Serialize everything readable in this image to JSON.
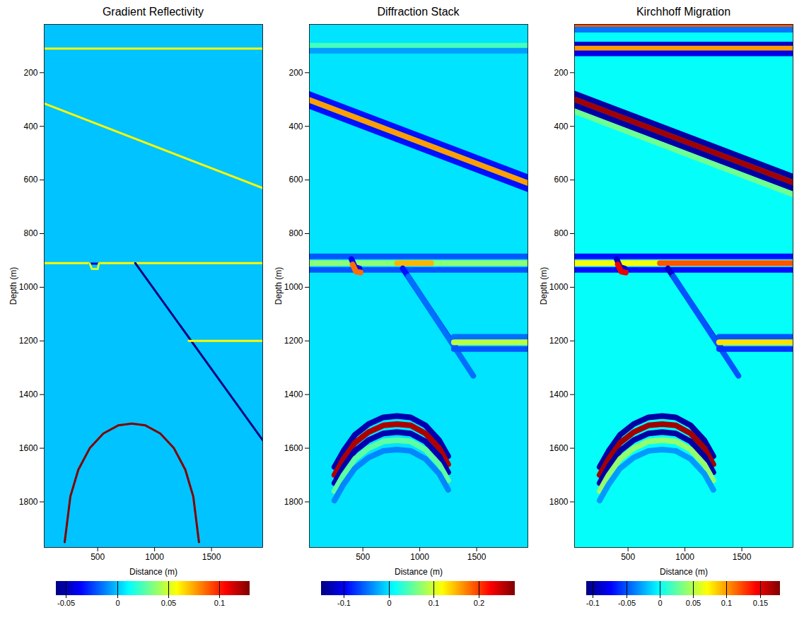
{
  "chart_data": [
    {
      "type": "image",
      "title": "Gradient Reflectivity",
      "xlabel": "Distance (m)",
      "ylabel": "Depth (m)",
      "xlim": [
        30,
        1950
      ],
      "ylim": [
        1970,
        20
      ],
      "xticks": [
        500,
        1000,
        1500
      ],
      "yticks": [
        200,
        400,
        600,
        800,
        1000,
        1200,
        1400,
        1600,
        1800
      ],
      "colorbar": {
        "range": [
          -0.06,
          0.13
        ],
        "ticks": [
          -0.05,
          0,
          0.05,
          0.1
        ]
      },
      "background": 0,
      "reflectors": [
        {
          "x": [
            30,
            1950
          ],
          "depth": [
            110,
            110
          ],
          "value": 0.06
        },
        {
          "x": [
            30,
            1950
          ],
          "depth": [
            315,
            630
          ],
          "value": 0.06
        },
        {
          "x": [
            30,
            430
          ],
          "depth": [
            910,
            910
          ],
          "value": 0.06
        },
        {
          "x": [
            510,
            1950
          ],
          "depth": [
            910,
            910
          ],
          "value": 0.06
        },
        {
          "x": [
            430,
            510
          ],
          "depth": [
            912,
            912
          ],
          "value": -0.05
        },
        {
          "x": [
            430,
            450,
            500,
            510
          ],
          "depth": [
            912,
            932,
            932,
            912
          ],
          "value": 0.05
        },
        {
          "x": [
            830,
            1950
          ],
          "depth": [
            910,
            1570
          ],
          "value": -0.06
        },
        {
          "x": [
            1300,
            1950
          ],
          "depth": [
            1200,
            1200
          ],
          "value": 0.06
        },
        {
          "x": [
            210,
            260,
            330,
            430,
            550,
            680,
            800,
            920,
            1050,
            1170,
            1270,
            1340,
            1390
          ],
          "depth": [
            1950,
            1780,
            1680,
            1600,
            1545,
            1515,
            1508,
            1515,
            1545,
            1600,
            1680,
            1780,
            1950
          ],
          "value": 0.13
        }
      ]
    },
    {
      "type": "image",
      "title": "Diffraction Stack",
      "xlabel": "Distance (m)",
      "ylabel": "Depth (m)",
      "xlim": [
        30,
        1950
      ],
      "ylim": [
        1970,
        20
      ],
      "xticks": [
        500,
        1000,
        1500
      ],
      "yticks": [
        200,
        400,
        600,
        800,
        1000,
        1200,
        1400,
        1600,
        1800
      ],
      "colorbar": {
        "range": [
          -0.15,
          0.28
        ],
        "ticks": [
          -0.1,
          0,
          0.1,
          0.2
        ]
      },
      "background": 0,
      "reflectors": [
        {
          "x": [
            30,
            1950
          ],
          "depth": [
            100,
            100
          ],
          "value": 0.04
        },
        {
          "x": [
            30,
            1950
          ],
          "depth": [
            118,
            118
          ],
          "value": -0.03
        },
        {
          "x": [
            30,
            1950
          ],
          "depth": [
            280,
            590
          ],
          "value": -0.09
        },
        {
          "x": [
            30,
            1950
          ],
          "depth": [
            302,
            612
          ],
          "value": 0.16
        },
        {
          "x": [
            30,
            1950
          ],
          "depth": [
            324,
            634
          ],
          "value": -0.09
        },
        {
          "x": [
            30,
            1950
          ],
          "depth": [
            885,
            885
          ],
          "value": -0.06
        },
        {
          "x": [
            30,
            1950
          ],
          "depth": [
            910,
            910
          ],
          "value": 0.07
        },
        {
          "x": [
            30,
            1950
          ],
          "depth": [
            935,
            935
          ],
          "value": -0.06
        },
        {
          "x": [
            800,
            1100
          ],
          "depth": [
            910,
            910
          ],
          "value": 0.15
        },
        {
          "x": [
            400,
            430,
            470
          ],
          "depth": [
            895,
            925,
            930
          ],
          "value": -0.1
        },
        {
          "x": [
            410,
            440,
            480
          ],
          "depth": [
            915,
            942,
            945
          ],
          "value": 0.18
        },
        {
          "x": [
            850,
            1330
          ],
          "depth": [
            930,
            1235
          ],
          "value": -0.09
        },
        {
          "x": [
            900,
            1470
          ],
          "depth": [
            960,
            1330
          ],
          "value": -0.05
        },
        {
          "x": [
            1300,
            1950
          ],
          "depth": [
            1185,
            1185
          ],
          "value": -0.05
        },
        {
          "x": [
            1300,
            1950
          ],
          "depth": [
            1205,
            1205
          ],
          "value": 0.09
        },
        {
          "x": [
            1300,
            1950
          ],
          "depth": [
            1230,
            1230
          ],
          "value": -0.06
        },
        {
          "x": [
            250,
            330,
            430,
            550,
            680,
            800,
            920,
            1050,
            1170,
            1250
          ],
          "depth": [
            1670,
            1610,
            1550,
            1510,
            1485,
            1480,
            1485,
            1515,
            1570,
            1630
          ],
          "value": -0.13
        },
        {
          "x": [
            250,
            330,
            430,
            550,
            680,
            800,
            920,
            1050,
            1170,
            1250
          ],
          "depth": [
            1700,
            1640,
            1580,
            1540,
            1515,
            1510,
            1515,
            1545,
            1600,
            1660
          ],
          "value": 0.26
        },
        {
          "x": [
            250,
            330,
            430,
            550,
            680,
            800,
            920,
            1050,
            1170,
            1250
          ],
          "depth": [
            1730,
            1670,
            1610,
            1570,
            1545,
            1540,
            1545,
            1575,
            1630,
            1690
          ],
          "value": -0.13
        },
        {
          "x": [
            250,
            330,
            430,
            550,
            680,
            800,
            920,
            1050,
            1170,
            1250
          ],
          "depth": [
            1760,
            1700,
            1640,
            1600,
            1575,
            1570,
            1575,
            1605,
            1660,
            1720
          ],
          "value": 0.05
        },
        {
          "x": [
            250,
            330,
            430,
            550,
            680,
            800,
            920,
            1050,
            1170,
            1250
          ],
          "depth": [
            1795,
            1735,
            1675,
            1635,
            1610,
            1605,
            1610,
            1640,
            1695,
            1755
          ],
          "value": -0.04
        }
      ]
    },
    {
      "type": "image",
      "title": "Kirchhoff Migration",
      "xlabel": "Distance (m)",
      "ylabel": "Depth (m)",
      "xlim": [
        30,
        1950
      ],
      "ylim": [
        1970,
        20
      ],
      "xticks": [
        500,
        1000,
        1500
      ],
      "yticks": [
        200,
        400,
        600,
        800,
        1000,
        1200,
        1400,
        1600,
        1800
      ],
      "colorbar": {
        "range": [
          -0.11,
          0.18
        ],
        "ticks": [
          -0.1,
          -0.05,
          0,
          0.05,
          0.1,
          0.15
        ]
      },
      "background": 0,
      "reflectors": [
        {
          "x": [
            30,
            1950
          ],
          "depth": [
            25,
            25
          ],
          "value": 0.12
        },
        {
          "x": [
            30,
            1950
          ],
          "depth": [
            40,
            40
          ],
          "value": -0.04
        },
        {
          "x": [
            30,
            1950
          ],
          "depth": [
            95,
            95
          ],
          "value": -0.09
        },
        {
          "x": [
            30,
            1950
          ],
          "depth": [
            110,
            110
          ],
          "value": 0.1
        },
        {
          "x": [
            30,
            1950
          ],
          "depth": [
            128,
            128
          ],
          "value": -0.08
        },
        {
          "x": [
            30,
            1950
          ],
          "depth": [
            278,
            588
          ],
          "value": -0.1
        },
        {
          "x": [
            30,
            1950
          ],
          "depth": [
            300,
            610
          ],
          "value": 0.17
        },
        {
          "x": [
            30,
            1950
          ],
          "depth": [
            322,
            632
          ],
          "value": -0.1
        },
        {
          "x": [
            30,
            1950
          ],
          "depth": [
            344,
            654
          ],
          "value": 0.03
        },
        {
          "x": [
            30,
            1950
          ],
          "depth": [
            885,
            885
          ],
          "value": -0.07
        },
        {
          "x": [
            30,
            1950
          ],
          "depth": [
            910,
            910
          ],
          "value": 0.07
        },
        {
          "x": [
            30,
            1950
          ],
          "depth": [
            935,
            935
          ],
          "value": -0.07
        },
        {
          "x": [
            780,
            1950
          ],
          "depth": [
            910,
            910
          ],
          "value": 0.12
        },
        {
          "x": [
            400,
            430,
            470
          ],
          "depth": [
            895,
            925,
            930
          ],
          "value": -0.09
        },
        {
          "x": [
            410,
            440,
            480
          ],
          "depth": [
            915,
            942,
            945
          ],
          "value": 0.15
        },
        {
          "x": [
            850,
            1330
          ],
          "depth": [
            930,
            1235
          ],
          "value": -0.09
        },
        {
          "x": [
            900,
            1470
          ],
          "depth": [
            960,
            1330
          ],
          "value": -0.05
        },
        {
          "x": [
            1300,
            1950
          ],
          "depth": [
            1185,
            1185
          ],
          "value": -0.05
        },
        {
          "x": [
            1300,
            1950
          ],
          "depth": [
            1205,
            1205
          ],
          "value": 0.08
        },
        {
          "x": [
            1300,
            1950
          ],
          "depth": [
            1230,
            1230
          ],
          "value": -0.06
        },
        {
          "x": [
            250,
            330,
            430,
            550,
            680,
            800,
            920,
            1050,
            1170,
            1250
          ],
          "depth": [
            1670,
            1610,
            1550,
            1510,
            1485,
            1480,
            1485,
            1515,
            1570,
            1630
          ],
          "value": -0.1
        },
        {
          "x": [
            250,
            330,
            430,
            550,
            680,
            800,
            920,
            1050,
            1170,
            1250
          ],
          "depth": [
            1700,
            1640,
            1580,
            1540,
            1515,
            1510,
            1515,
            1545,
            1600,
            1660
          ],
          "value": 0.17
        },
        {
          "x": [
            250,
            330,
            430,
            550,
            680,
            800,
            920,
            1050,
            1170,
            1250
          ],
          "depth": [
            1730,
            1670,
            1610,
            1570,
            1545,
            1540,
            1545,
            1575,
            1630,
            1690
          ],
          "value": -0.1
        },
        {
          "x": [
            250,
            330,
            430,
            550,
            680,
            800,
            920,
            1050,
            1170,
            1250
          ],
          "depth": [
            1760,
            1700,
            1640,
            1600,
            1575,
            1570,
            1575,
            1605,
            1660,
            1720
          ],
          "value": 0.04
        },
        {
          "x": [
            250,
            330,
            430,
            550,
            680,
            800,
            920,
            1050,
            1170,
            1250
          ],
          "depth": [
            1795,
            1735,
            1675,
            1635,
            1610,
            1605,
            1610,
            1640,
            1695,
            1755
          ],
          "value": -0.03
        }
      ]
    }
  ]
}
